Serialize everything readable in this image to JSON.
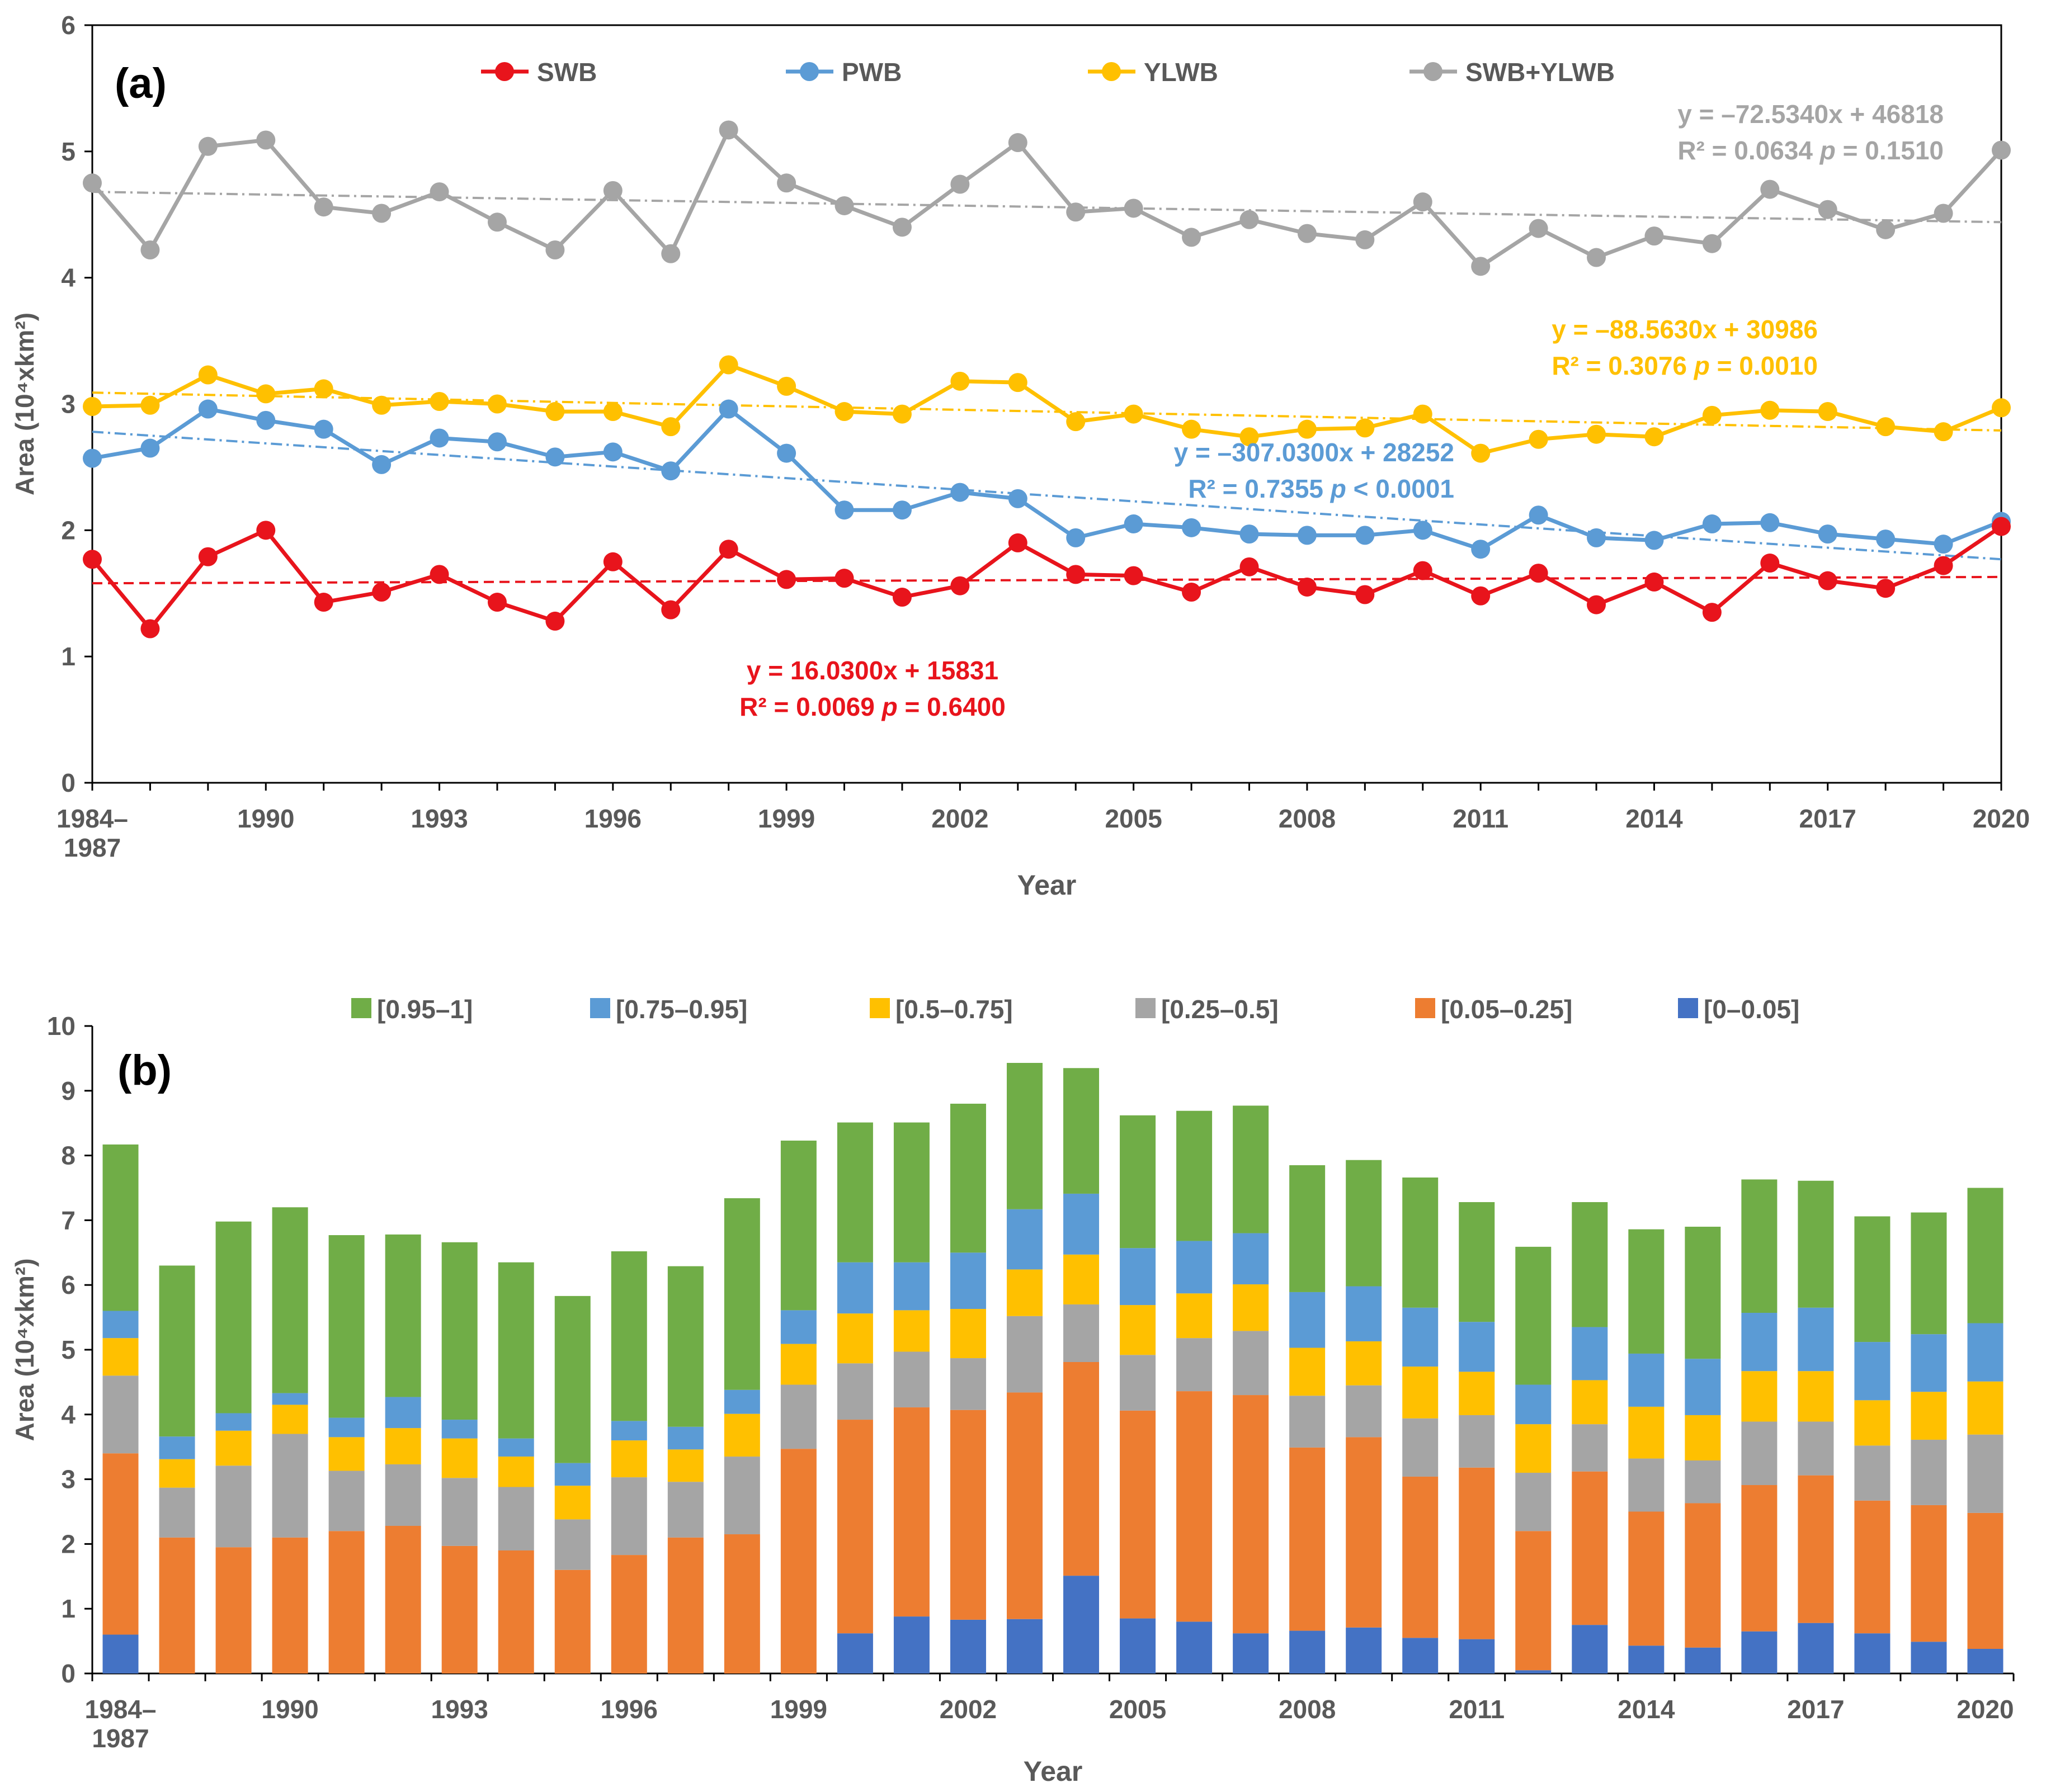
{
  "chart_data": [
    {
      "type": "line",
      "panel_label": "(a)",
      "x": [
        "1984–1987",
        "1988",
        "1989",
        "1990",
        "1991",
        "1992",
        "1993",
        "1994",
        "1995",
        "1996",
        "1997",
        "1998",
        "1999",
        "2000",
        "2001",
        "2002",
        "2003",
        "2004",
        "2005",
        "2006",
        "2007",
        "2008",
        "2009",
        "2010",
        "2011",
        "2012",
        "2013",
        "2014",
        "2015",
        "2016",
        "2017",
        "2018",
        "2019",
        "2020"
      ],
      "tick_labels": [
        {
          "index": 0,
          "lines": [
            "1984–",
            "1987"
          ]
        },
        {
          "index": 3,
          "lines": [
            "1990"
          ]
        },
        {
          "index": 6,
          "lines": [
            "1993"
          ]
        },
        {
          "index": 9,
          "lines": [
            "1996"
          ]
        },
        {
          "index": 12,
          "lines": [
            "1999"
          ]
        },
        {
          "index": 15,
          "lines": [
            "2002"
          ]
        },
        {
          "index": 18,
          "lines": [
            "2005"
          ]
        },
        {
          "index": 21,
          "lines": [
            "2008"
          ]
        },
        {
          "index": 24,
          "lines": [
            "2011"
          ]
        },
        {
          "index": 27,
          "lines": [
            "2014"
          ]
        },
        {
          "index": 30,
          "lines": [
            "2017"
          ]
        },
        {
          "index": 33,
          "lines": [
            "2020"
          ]
        }
      ],
      "xlabel": "Year",
      "ylabel": "Area (10⁴xkm²)",
      "ylim": [
        0,
        6
      ],
      "yticks": [
        0,
        1,
        2,
        3,
        4,
        5,
        6
      ],
      "legend": "top",
      "series": [
        {
          "name": "SWB",
          "color": "#e8141c",
          "trend": [
            1.58,
            1.63
          ],
          "trend_style": "dashed",
          "values": [
            1.77,
            1.22,
            1.79,
            2.0,
            1.43,
            1.51,
            1.65,
            1.43,
            1.28,
            1.75,
            1.37,
            1.85,
            1.61,
            1.62,
            1.47,
            1.56,
            1.9,
            1.65,
            1.64,
            1.51,
            1.71,
            1.55,
            1.49,
            1.68,
            1.48,
            1.66,
            1.41,
            1.59,
            1.35,
            1.74,
            1.6,
            1.54,
            1.72,
            2.03
          ]
        },
        {
          "name": "PWB",
          "color": "#5b9bd5",
          "trend": [
            2.78,
            1.77
          ],
          "trend_style": "dashdot",
          "values": [
            2.57,
            2.65,
            2.96,
            2.87,
            2.8,
            2.52,
            2.73,
            2.7,
            2.58,
            2.62,
            2.47,
            2.96,
            2.61,
            2.16,
            2.16,
            2.3,
            2.25,
            1.94,
            2.05,
            2.02,
            1.97,
            1.96,
            1.96,
            2.0,
            1.85,
            2.12,
            1.94,
            1.92,
            2.05,
            2.06,
            1.97,
            1.93,
            1.89,
            2.07
          ]
        },
        {
          "name": "YLWB",
          "color": "#ffc000",
          "trend": [
            3.09,
            2.79
          ],
          "trend_style": "dashdot",
          "values": [
            2.98,
            2.99,
            3.23,
            3.08,
            3.12,
            2.99,
            3.02,
            3.0,
            2.94,
            2.94,
            2.82,
            3.31,
            3.14,
            2.94,
            2.92,
            3.18,
            3.17,
            2.86,
            2.92,
            2.8,
            2.74,
            2.8,
            2.81,
            2.92,
            2.61,
            2.72,
            2.76,
            2.74,
            2.91,
            2.95,
            2.94,
            2.82,
            2.78,
            2.97
          ]
        },
        {
          "name": "SWB+YLWB",
          "color": "#a5a5a5",
          "trend": [
            4.68,
            4.44
          ],
          "trend_style": "dashdot",
          "values": [
            4.75,
            4.22,
            5.04,
            5.09,
            4.56,
            4.51,
            4.68,
            4.44,
            4.22,
            4.69,
            4.19,
            5.17,
            4.75,
            4.57,
            4.4,
            4.74,
            5.07,
            4.52,
            4.55,
            4.32,
            4.46,
            4.35,
            4.3,
            4.6,
            4.09,
            4.39,
            4.16,
            4.33,
            4.27,
            4.7,
            4.54,
            4.38,
            4.51,
            5.01
          ]
        }
      ],
      "annotations": [
        {
          "series": "SWB+YLWB",
          "line1": "y = –72.5340x + 46818",
          "r2": "R² = 0.0634 ",
          "p_symbol": "p",
          "p_rest": " = 0.1510"
        },
        {
          "series": "YLWB",
          "line1": "y = –88.5630x + 30986",
          "r2": "R² = 0.3076 ",
          "p_symbol": "p",
          "p_rest": " = 0.0010"
        },
        {
          "series": "PWB",
          "line1": "y = –307.0300x + 28252",
          "r2": "R² = 0.7355 ",
          "p_symbol": "p",
          "p_rest": " < 0.0001"
        },
        {
          "series": "SWB",
          "line1": "y = 16.0300x + 15831",
          "r2": "R² = 0.0069 ",
          "p_symbol": "p",
          "p_rest": " = 0.6400"
        }
      ]
    },
    {
      "type": "bar",
      "stacked": true,
      "panel_label": "(b)",
      "categories": [
        "1984–1987",
        "1988",
        "1989",
        "1990",
        "1991",
        "1992",
        "1993",
        "1994",
        "1995",
        "1996",
        "1997",
        "1998",
        "1999",
        "2000",
        "2001",
        "2002",
        "2003",
        "2004",
        "2005",
        "2006",
        "2007",
        "2008",
        "2009",
        "2010",
        "2011",
        "2012",
        "2013",
        "2014",
        "2015",
        "2016",
        "2017",
        "2018",
        "2019",
        "2020"
      ],
      "xlabel": "Year",
      "ylabel": "Area (10⁴xkm²)",
      "ylim": [
        0,
        10
      ],
      "yticks": [
        0,
        1,
        2,
        3,
        4,
        5,
        6,
        7,
        8,
        9,
        10
      ],
      "legend": "top",
      "series": [
        {
          "name": "[0–0.05]",
          "color": "#4472c4",
          "values": [
            0.6,
            0.0,
            0.0,
            0.0,
            0.0,
            0.0,
            0.0,
            0.0,
            0.0,
            0.0,
            0.0,
            0.0,
            0.0,
            0.62,
            0.88,
            0.83,
            0.84,
            1.51,
            0.85,
            0.8,
            0.62,
            0.66,
            0.71,
            0.55,
            0.53,
            0.05,
            0.75,
            0.43,
            0.4,
            0.65,
            0.78,
            0.62,
            0.49,
            0.38
          ]
        },
        {
          "name": "[0.05–0.25]",
          "color": "#ed7d31",
          "values": [
            2.8,
            2.1,
            1.95,
            2.1,
            2.2,
            2.28,
            1.97,
            1.9,
            1.6,
            1.83,
            2.1,
            2.15,
            3.47,
            3.3,
            3.23,
            3.24,
            3.5,
            3.3,
            3.21,
            3.56,
            3.68,
            2.83,
            2.94,
            2.49,
            2.65,
            2.15,
            2.37,
            2.07,
            2.23,
            2.26,
            2.28,
            2.05,
            2.11,
            2.1
          ]
        },
        {
          "name": "[0.25–0.5]",
          "color": "#a5a5a5",
          "values": [
            1.2,
            0.77,
            1.26,
            1.6,
            0.93,
            0.95,
            1.05,
            0.98,
            0.78,
            1.2,
            0.86,
            1.2,
            0.99,
            0.87,
            0.86,
            0.8,
            1.18,
            0.89,
            0.86,
            0.82,
            0.99,
            0.8,
            0.8,
            0.9,
            0.81,
            0.9,
            0.73,
            0.82,
            0.66,
            0.98,
            0.83,
            0.85,
            1.01,
            1.21
          ]
        },
        {
          "name": "[0.5–0.75]",
          "color": "#ffc000",
          "values": [
            0.58,
            0.44,
            0.54,
            0.45,
            0.52,
            0.56,
            0.61,
            0.47,
            0.52,
            0.57,
            0.5,
            0.66,
            0.63,
            0.77,
            0.64,
            0.76,
            0.72,
            0.77,
            0.77,
            0.69,
            0.72,
            0.74,
            0.68,
            0.8,
            0.67,
            0.75,
            0.68,
            0.8,
            0.7,
            0.78,
            0.78,
            0.7,
            0.74,
            0.82
          ]
        },
        {
          "name": "[0.75–0.95]",
          "color": "#5b9bd5",
          "values": [
            0.42,
            0.35,
            0.27,
            0.18,
            0.3,
            0.48,
            0.29,
            0.28,
            0.35,
            0.3,
            0.35,
            0.37,
            0.52,
            0.79,
            0.74,
            0.87,
            0.93,
            0.94,
            0.88,
            0.81,
            0.79,
            0.86,
            0.85,
            0.91,
            0.77,
            0.61,
            0.82,
            0.82,
            0.87,
            0.9,
            0.98,
            0.9,
            0.89,
            0.9
          ]
        },
        {
          "name": "[0.95–1]",
          "color": "#70ad47",
          "values": [
            2.57,
            2.64,
            2.96,
            2.87,
            2.82,
            2.51,
            2.74,
            2.72,
            2.58,
            2.62,
            2.48,
            2.96,
            2.62,
            2.16,
            2.16,
            2.3,
            2.26,
            1.94,
            2.05,
            2.01,
            1.97,
            1.96,
            1.95,
            2.01,
            1.85,
            2.13,
            1.93,
            1.92,
            2.04,
            2.06,
            1.96,
            1.94,
            1.88,
            2.09
          ]
        }
      ]
    }
  ]
}
